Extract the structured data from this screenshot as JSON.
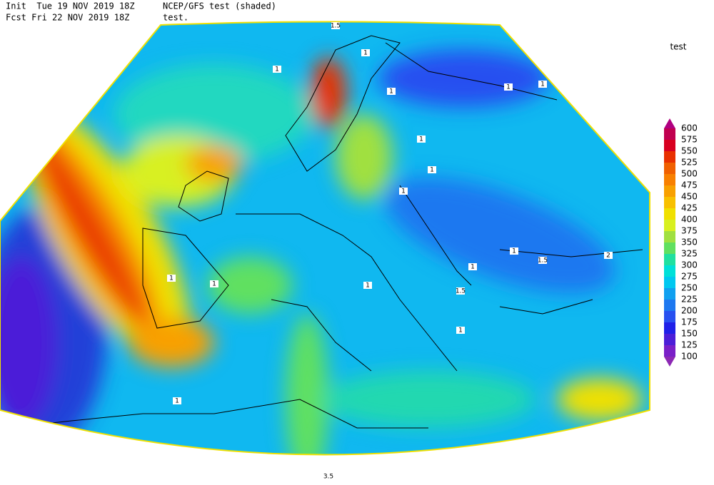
{
  "header": {
    "init": "Init  Tue 19 NOV 2019 18Z",
    "forecast": "Fcst Fri 22 NOV 2019 18Z",
    "title": "NCEP/GFS test (shaded)",
    "subtitle": "test."
  },
  "legend": {
    "title": "test",
    "levels": [
      "100",
      "125",
      "150",
      "175",
      "200",
      "225",
      "250",
      "275",
      "300",
      "325",
      "350",
      "375",
      "400",
      "425",
      "450",
      "475",
      "500",
      "525",
      "550",
      "575",
      "600"
    ],
    "colors": [
      "#8c28b4",
      "#7a1fc8",
      "#4c1ed8",
      "#2020e8",
      "#2850f0",
      "#1e78f0",
      "#10a0f0",
      "#00c8f0",
      "#00e0d8",
      "#20e0a0",
      "#60e060",
      "#a0e040",
      "#d8f020",
      "#f0e000",
      "#f8c000",
      "#f8a000",
      "#f88000",
      "#f06000",
      "#e83000",
      "#d80020",
      "#c00050",
      "#b00080"
    ]
  },
  "contour_labels": [
    "1.5",
    "1",
    "1",
    "1",
    "1",
    "1",
    "1",
    "1",
    "1",
    "1.5",
    "2",
    "1.5",
    "1",
    "1",
    "1",
    "1",
    "1",
    "1",
    "1",
    "3.5"
  ]
}
